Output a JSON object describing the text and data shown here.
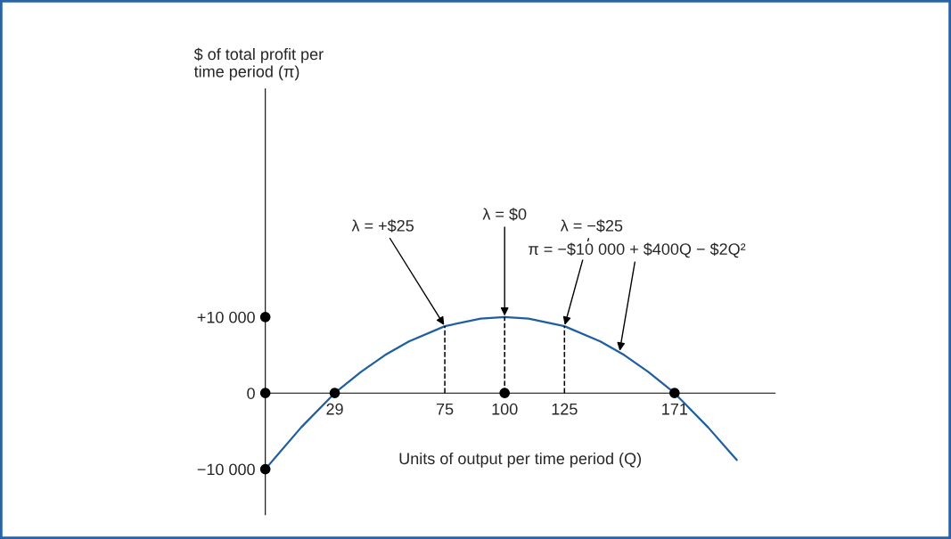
{
  "chart_data": {
    "type": "line",
    "xlabel": "Units of output per time period (Q)",
    "ylabel": "$ of total profit per\ntime period (π)",
    "xlim": [
      0,
      213
    ],
    "ylim": [
      -16000,
      40000
    ],
    "xticks": [
      29,
      75,
      100,
      125,
      171
    ],
    "yticks": [
      {
        "value": 10000,
        "label": "+10 000"
      },
      0,
      {
        "value": -10000,
        "label": "−10 000"
      }
    ],
    "grid": false,
    "legend": false,
    "series": [
      {
        "color": "#1f5fa0",
        "x": [
          0,
          15,
          29,
          40,
          50,
          60,
          75,
          90,
          100,
          110,
          125,
          140,
          150,
          160,
          171,
          185,
          197
        ],
        "values": [
          -10000,
          -4500,
          0,
          2800,
          5000,
          6800,
          8800,
          9800,
          10000,
          9800,
          8800,
          6800,
          5000,
          2800,
          0,
          -4500,
          -8800
        ]
      },
      {
        "type": "line",
        "color": "#000000",
        "line_style": "dashed",
        "x": [
          75,
          75
        ],
        "values": [
          0,
          8800
        ]
      },
      {
        "type": "line",
        "color": "#000000",
        "line_style": "dashed",
        "x": [
          100,
          100
        ],
        "values": [
          0,
          10000
        ]
      },
      {
        "type": "line",
        "color": "#000000",
        "line_style": "dashed",
        "x": [
          125,
          125
        ],
        "values": [
          0,
          8800
        ]
      },
      {
        "type": "scatter",
        "color": "#000000",
        "marker": "circle",
        "x": [
          0,
          0,
          0,
          29,
          100,
          171
        ],
        "values": [
          10000,
          0,
          -10000,
          0,
          0,
          0
        ]
      }
    ],
    "annotations": [
      {
        "text": "λ = +$25",
        "x": 75,
        "y": 8800
      },
      {
        "text": "λ = $0",
        "x": 100,
        "y": 10000
      },
      {
        "text": "λ = −$25",
        "x": 125,
        "y": 8800
      },
      {
        "text": "π = −$10 000 + $400Q − $2Q²",
        "x": 148,
        "y": 5400
      }
    ]
  }
}
